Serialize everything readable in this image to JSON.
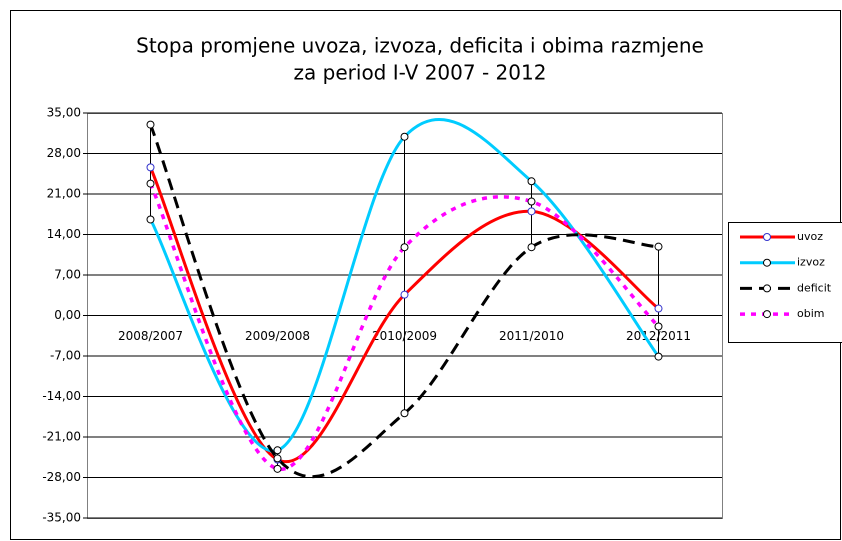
{
  "chart_data": {
    "type": "line",
    "title": "Stopa promjene uvoza, izvoza, deficita i obima razmjene",
    "subtitle": "za period I-V 2007 - 2012",
    "categories": [
      "2008/2007",
      "2009/2008",
      "2010/2009",
      "2011/2010",
      "2012/2011"
    ],
    "series": [
      {
        "name": "uvoz",
        "color": "#ff0000",
        "values": [
          25.6,
          -24.9,
          3.6,
          18.0,
          1.2
        ]
      },
      {
        "name": "izvoz",
        "color": "#00ccff",
        "values": [
          16.6,
          -23.3,
          30.9,
          23.2,
          -7.1
        ]
      },
      {
        "name": "deficit",
        "color": "#000000",
        "values": [
          33.0,
          -24.7,
          -16.9,
          11.8,
          11.9
        ]
      },
      {
        "name": "obim",
        "color": "#ff00ff",
        "values": [
          22.8,
          -26.5,
          11.8,
          19.7,
          -1.9
        ]
      }
    ],
    "ylim": [
      -35,
      35
    ],
    "yticks": [
      {
        "value": -35,
        "label": "-35,00"
      },
      {
        "value": -28,
        "label": "-28,00"
      },
      {
        "value": -21,
        "label": "-21,00"
      },
      {
        "value": -14,
        "label": "-14,00"
      },
      {
        "value": -7,
        "label": "-7,00"
      },
      {
        "value": 0,
        "label": "0,00"
      },
      {
        "value": 7,
        "label": "7,00"
      },
      {
        "value": 14,
        "label": "14,00"
      },
      {
        "value": 21,
        "label": "21,00"
      },
      {
        "value": 28,
        "label": "28,00"
      },
      {
        "value": 35,
        "label": "35,00"
      }
    ],
    "grid": true,
    "legend": "right"
  }
}
